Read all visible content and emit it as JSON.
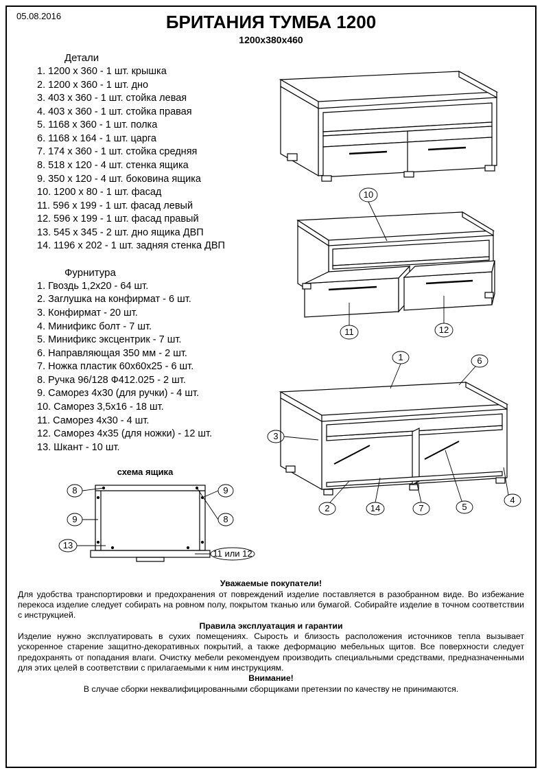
{
  "date": "05.08.2016",
  "title": "БРИТАНИЯ ТУМБА 1200",
  "subtitle": "1200x380x460",
  "parts_header": "Детали",
  "parts": [
    "1. 1200 x 360 - 1 шт. крышка",
    "2. 1200 x 360 - 1 шт. дно",
    "3. 403 x 360 - 1 шт. стойка левая",
    "4. 403 x 360 - 1 шт. стойка правая",
    "5. 1168 x 360 - 1 шт. полка",
    "6. 1168 x 164 - 1 шт. царга",
    "7. 174 x 360 - 1 шт. стойка средняя",
    "8. 518 x 120 - 4 шт. стенка ящика",
    "9. 350 x 120 - 4 шт. боковина  ящика",
    "10. 1200 x 80 - 1 шт. фасад",
    "11. 596 x 199 - 1 шт. фасад левый",
    "12. 596 x 199 - 1 шт. фасад правый",
    "13. 545 x 345 - 2 шт. дно ящика ДВП",
    "14. 1196 x 202 - 1 шт. задняя стенка ДВП"
  ],
  "hw_header": "Фурнитура",
  "hardware": [
    "1. Гвоздь 1,2x20 - 64 шт.",
    "2. Заглушка на конфирмат - 6 шт.",
    "3. Конфирмат - 20 шт.",
    "4. Минификс болт - 7 шт.",
    "5. Минификс эксцентрик - 7 шт.",
    "6. Направляющая 350 мм - 2 шт.",
    "7. Ножка пластик 60x60x25 - 6 шт.",
    "8. Ручка 96/128 Ф412.025 - 2 шт.",
    "9. Саморез 4x30 (для ручки) - 4 шт.",
    "10. Саморез 3,5x16 - 18 шт.",
    "11. Саморез 4x30 - 4 шт.",
    "12. Саморез 4x35 (для ножки) - 12 шт.",
    "13. Шкант - 10 шт."
  ],
  "drawer_header": "схема ящика",
  "drawer_callouts": {
    "c8a": "8",
    "c9a": "9",
    "c8b": "8",
    "c9b": "9",
    "c13": "13",
    "c11": "11 или 12"
  },
  "fig2_callouts": {
    "c10": "10",
    "c11": "11",
    "c12": "12"
  },
  "fig3_callouts": {
    "c1": "1",
    "c6": "6",
    "c3": "3",
    "c2": "2",
    "c14": "14",
    "c7": "7",
    "c5": "5",
    "c4": "4"
  },
  "footer": {
    "h1": "Уважаемые покупатели!",
    "p1": "Для удобства транспортировки и предохранения от повреждений изделие поставляется в разобранном виде. Во избежание перекоса изделие следует собирать на ровном полу, покрытом тканью или бумагой. Собирайте изделие в точном соответствии с инструкцией.",
    "h2": "Правила эксплуатация и гарантии",
    "p2": "Изделие нужно эксплуатировать в сухих помещениях. Сырость и близость расположения источников тепла вызывает ускоренное старение защитно-декоративных покрытий, а также деформацию мебельных щитов. Все поверхности следует предохранять от попадания влаги. Очистку мебели рекомендуем производить специальными средствами, предназначенными для этих целей в соответствии с прилагаемыми к ним инструкциям.",
    "h3": "Внимание!",
    "p3": "В случае сборки неквалифицированными сборщиками претензии по качеству не принимаются."
  },
  "style": {
    "stroke": "#000000",
    "stroke_width": 1.2,
    "stroke_thin": 0.9,
    "bg": "#ffffff"
  }
}
